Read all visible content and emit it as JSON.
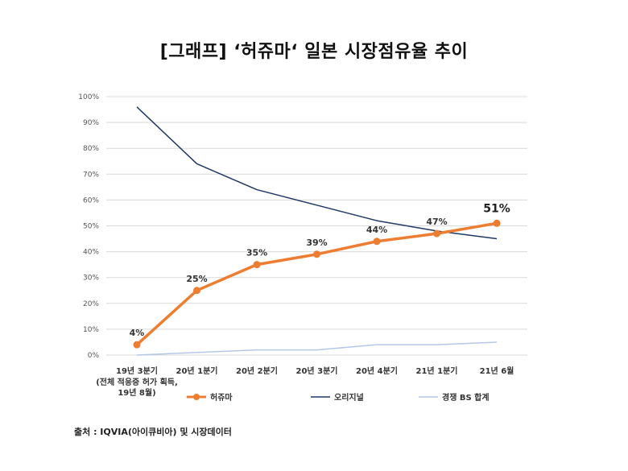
{
  "title": "[그래프] ‘허쥬마‘ 일본 시장점유율 추이",
  "source": "출처 : IQVIA(아이큐비아) 및 시장데이터",
  "chart_data": {
    "type": "line",
    "categories": [
      "19년 3분기",
      "20년 1분기",
      "20년 2분기",
      "20년 3분기",
      "20년 4분기",
      "21년 1분기",
      "21년 6월"
    ],
    "category_notes": [
      "(전체 적응증 허가 획득,",
      "19년 8월)"
    ],
    "yticks": [
      "0%",
      "10%",
      "20%",
      "30%",
      "40%",
      "50%",
      "60%",
      "70%",
      "80%",
      "90%",
      "100%"
    ],
    "ylim": [
      0,
      100
    ],
    "grid": true,
    "legend_position": "bottom",
    "series": [
      {
        "name": "허쥬마",
        "values": [
          4,
          25,
          35,
          39,
          44,
          47,
          51
        ],
        "labels": [
          "4%",
          "25%",
          "35%",
          "39%",
          "44%",
          "47%",
          "51%"
        ],
        "color": "#ED7D31",
        "markers": true
      },
      {
        "name": "오리지널",
        "values": [
          96,
          74,
          64,
          58,
          52,
          48,
          45
        ],
        "color": "#1F3864",
        "markers": false
      },
      {
        "name": "경쟁 BS 합계",
        "values": [
          0,
          1,
          2,
          2,
          4,
          4,
          5
        ],
        "color": "#B4C7E7",
        "markers": false
      }
    ]
  }
}
